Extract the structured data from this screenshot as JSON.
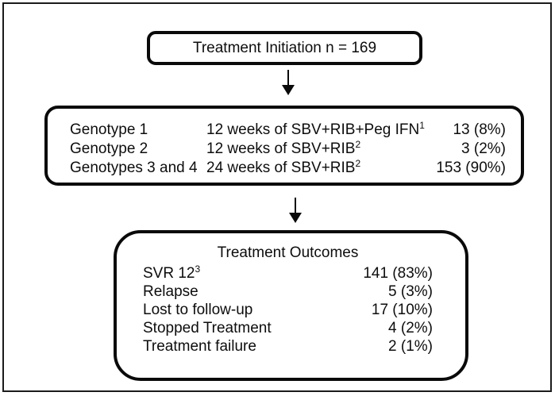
{
  "figure": {
    "colors": {
      "line": "#0a0a0a",
      "background": "#ffffff"
    },
    "top_box": {
      "title": "Treatment Initiation n = 169"
    },
    "middle_box": {
      "rows": [
        {
          "genotype": "Genotype 1",
          "regimen": "12 weeks of SBV+RIB+Peg IFN",
          "regimen_sup": "1",
          "count": "13 (8%)"
        },
        {
          "genotype": "Genotype 2",
          "regimen": "12 weeks of SBV+RIB",
          "regimen_sup": "2",
          "count": "3 (2%)"
        },
        {
          "genotype": "Genotypes 3 and 4",
          "regimen": "24 weeks of SBV+RIB",
          "regimen_sup": "2",
          "count": "153 (90%)"
        }
      ]
    },
    "bottom_box": {
      "title": "Treatment Outcomes",
      "rows": [
        {
          "label": "SVR 12",
          "label_sup": "3",
          "count": "141 (83%)"
        },
        {
          "label": "Relapse",
          "label_sup": "",
          "count": "5 (3%)"
        },
        {
          "label": "Lost to follow-up",
          "label_sup": "",
          "count": "17 (10%)"
        },
        {
          "label": "Stopped Treatment",
          "label_sup": "",
          "count": "4 (2%)"
        },
        {
          "label": "Treatment failure",
          "label_sup": "",
          "count": "2 (1%)"
        }
      ]
    }
  }
}
